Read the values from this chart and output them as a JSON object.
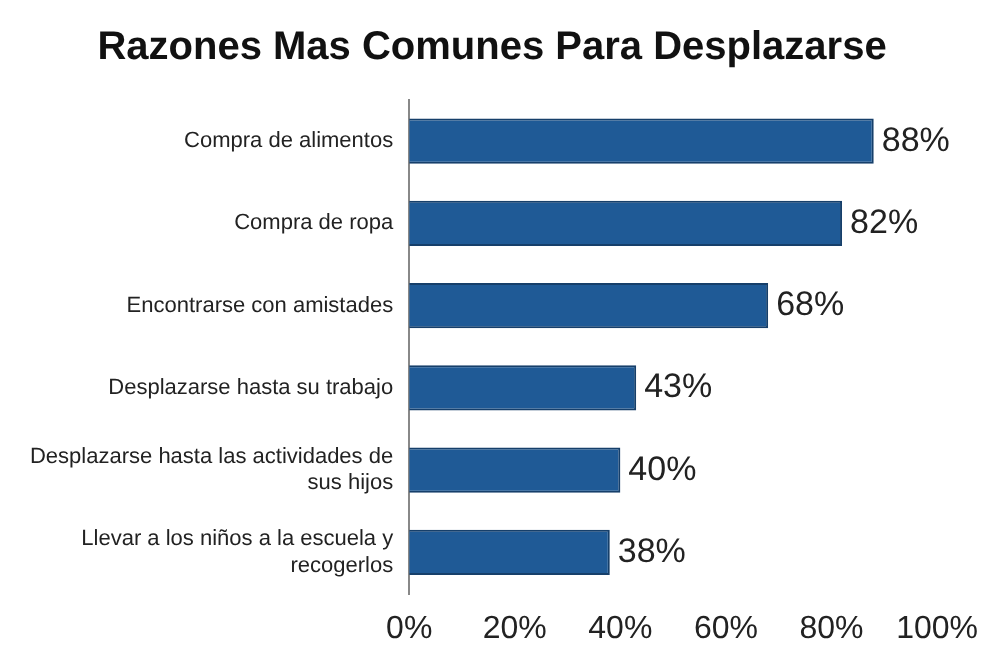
{
  "chart_data": {
    "type": "bar",
    "orientation": "horizontal",
    "title": "Razones Mas Comunes Para Desplazarse",
    "categories": [
      "Compra de alimentos",
      "Compra de ropa",
      "Encontrarse con amistades",
      "Desplazarse hasta su trabajo",
      "Desplazarse hasta las actividades de sus hijos",
      "Llevar a los niños a la escuela y recogerlos"
    ],
    "values": [
      88,
      82,
      68,
      43,
      40,
      38
    ],
    "value_labels": [
      "88%",
      "82%",
      "68%",
      "43%",
      "40%",
      "38%"
    ],
    "color": "#1f5a96",
    "xlim": [
      0,
      100
    ],
    "xticks": [
      {
        "value": 0,
        "label": "0%"
      },
      {
        "value": 20,
        "label": "20%"
      },
      {
        "value": 40,
        "label": "40%"
      },
      {
        "value": 60,
        "label": "60%"
      },
      {
        "value": 80,
        "label": "80%"
      },
      {
        "value": 100,
        "label": "100%"
      }
    ],
    "grid": false,
    "legend": false
  }
}
